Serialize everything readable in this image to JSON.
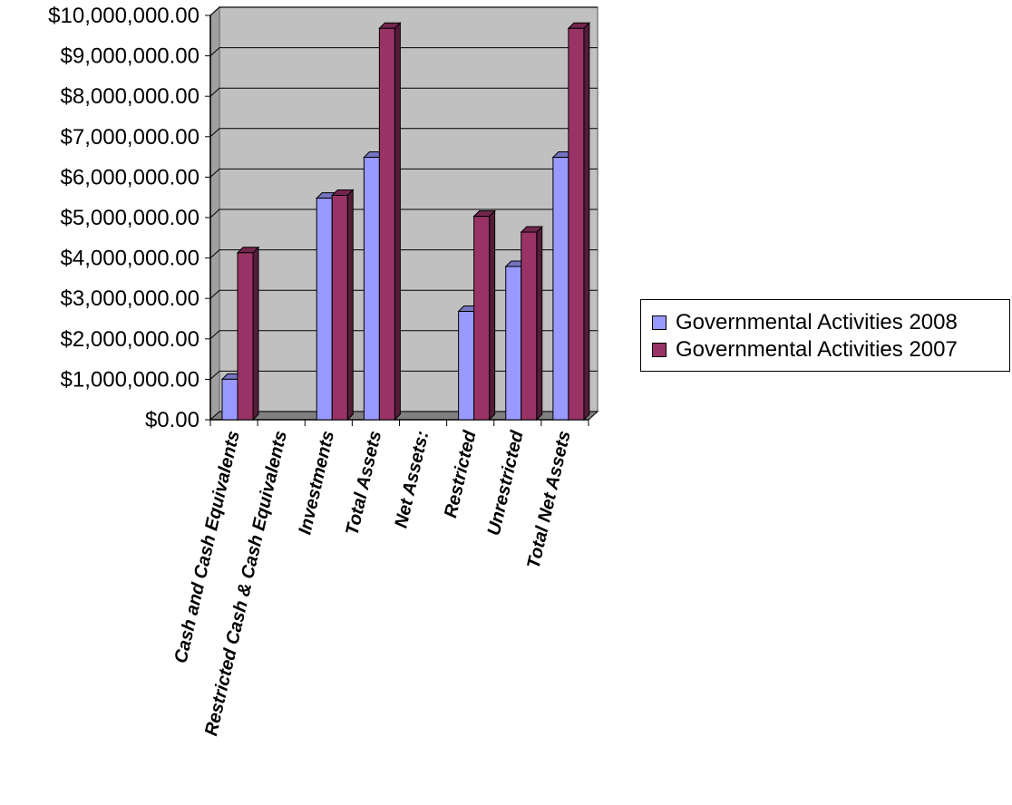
{
  "chart_data": {
    "type": "bar",
    "categories": [
      "Cash and Cash Equivalents",
      "Restricted Cash & Cash Equivalents",
      "Investments",
      "Total Assets",
      "Net Assets:",
      "Restricted",
      "Unrestricted",
      "Total Net Assets"
    ],
    "series": [
      {
        "name": "Governmental Activities 2008",
        "color": "#9999ff",
        "values": [
          1000000,
          0,
          5480000,
          6490000,
          0,
          2680000,
          3790000,
          6490000
        ]
      },
      {
        "name": "Governmental Activities 2007",
        "color": "#993366",
        "values": [
          4130000,
          0,
          5550000,
          9680000,
          0,
          5030000,
          4640000,
          9680000
        ]
      }
    ],
    "ylim": [
      0,
      10000000
    ],
    "yticks": [
      "$0.00",
      "$1,000,000.00",
      "$2,000,000.00",
      "$3,000,000.00",
      "$4,000,000.00",
      "$5,000,000.00",
      "$6,000,000.00",
      "$7,000,000.00",
      "$8,000,000.00",
      "$9,000,000.00",
      "$10,000,000.00"
    ],
    "grid": true,
    "legend_position": "right",
    "plot_background": "#c0c0c0"
  }
}
